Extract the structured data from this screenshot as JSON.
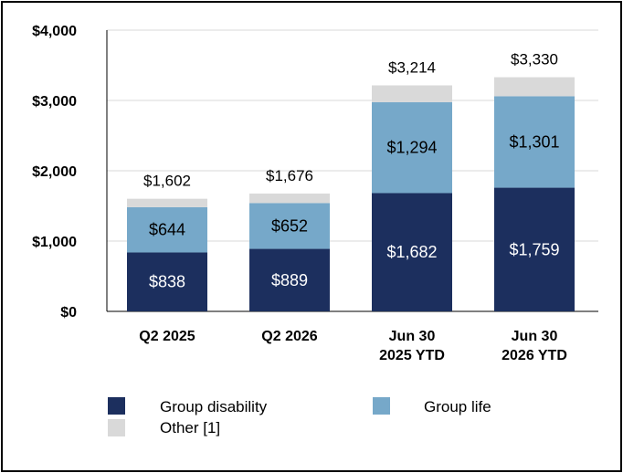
{
  "chart_data": {
    "type": "bar",
    "stacked": true,
    "categories": [
      [
        "Q2 2025"
      ],
      [
        "Q2 2026"
      ],
      [
        "Jun 30",
        "2025 YTD"
      ],
      [
        "Jun 30",
        "2026 YTD"
      ]
    ],
    "series": [
      {
        "name": "Group disability",
        "values": [
          838,
          889,
          1682,
          1759
        ],
        "labels": [
          "$838",
          "$889",
          "$1,682",
          "$1,759"
        ],
        "color": "#1c2f5e",
        "label_color": "#ffffff"
      },
      {
        "name": "Group life",
        "values": [
          644,
          652,
          1294,
          1301
        ],
        "labels": [
          "$644",
          "$652",
          "$1,294",
          "$1,301"
        ],
        "color": "#76a8c9",
        "label_color": "#000000"
      },
      {
        "name": "Other [1]",
        "values": [
          120,
          135,
          238,
          270
        ],
        "labels": null,
        "color": "#d9d9d9"
      }
    ],
    "totals": [
      1602,
      1676,
      3214,
      3330
    ],
    "total_labels": [
      "$1,602",
      "$1,676",
      "$3,214",
      "$3,330"
    ],
    "ylim": [
      0,
      4000
    ],
    "yticks": [
      0,
      1000,
      2000,
      3000,
      4000
    ],
    "ytick_labels": [
      "$0",
      "$1,000",
      "$2,000",
      "$3,000",
      "$4,000"
    ],
    "grid": true,
    "legend_position": "bottom",
    "title": "",
    "xlabel": "",
    "ylabel": ""
  }
}
